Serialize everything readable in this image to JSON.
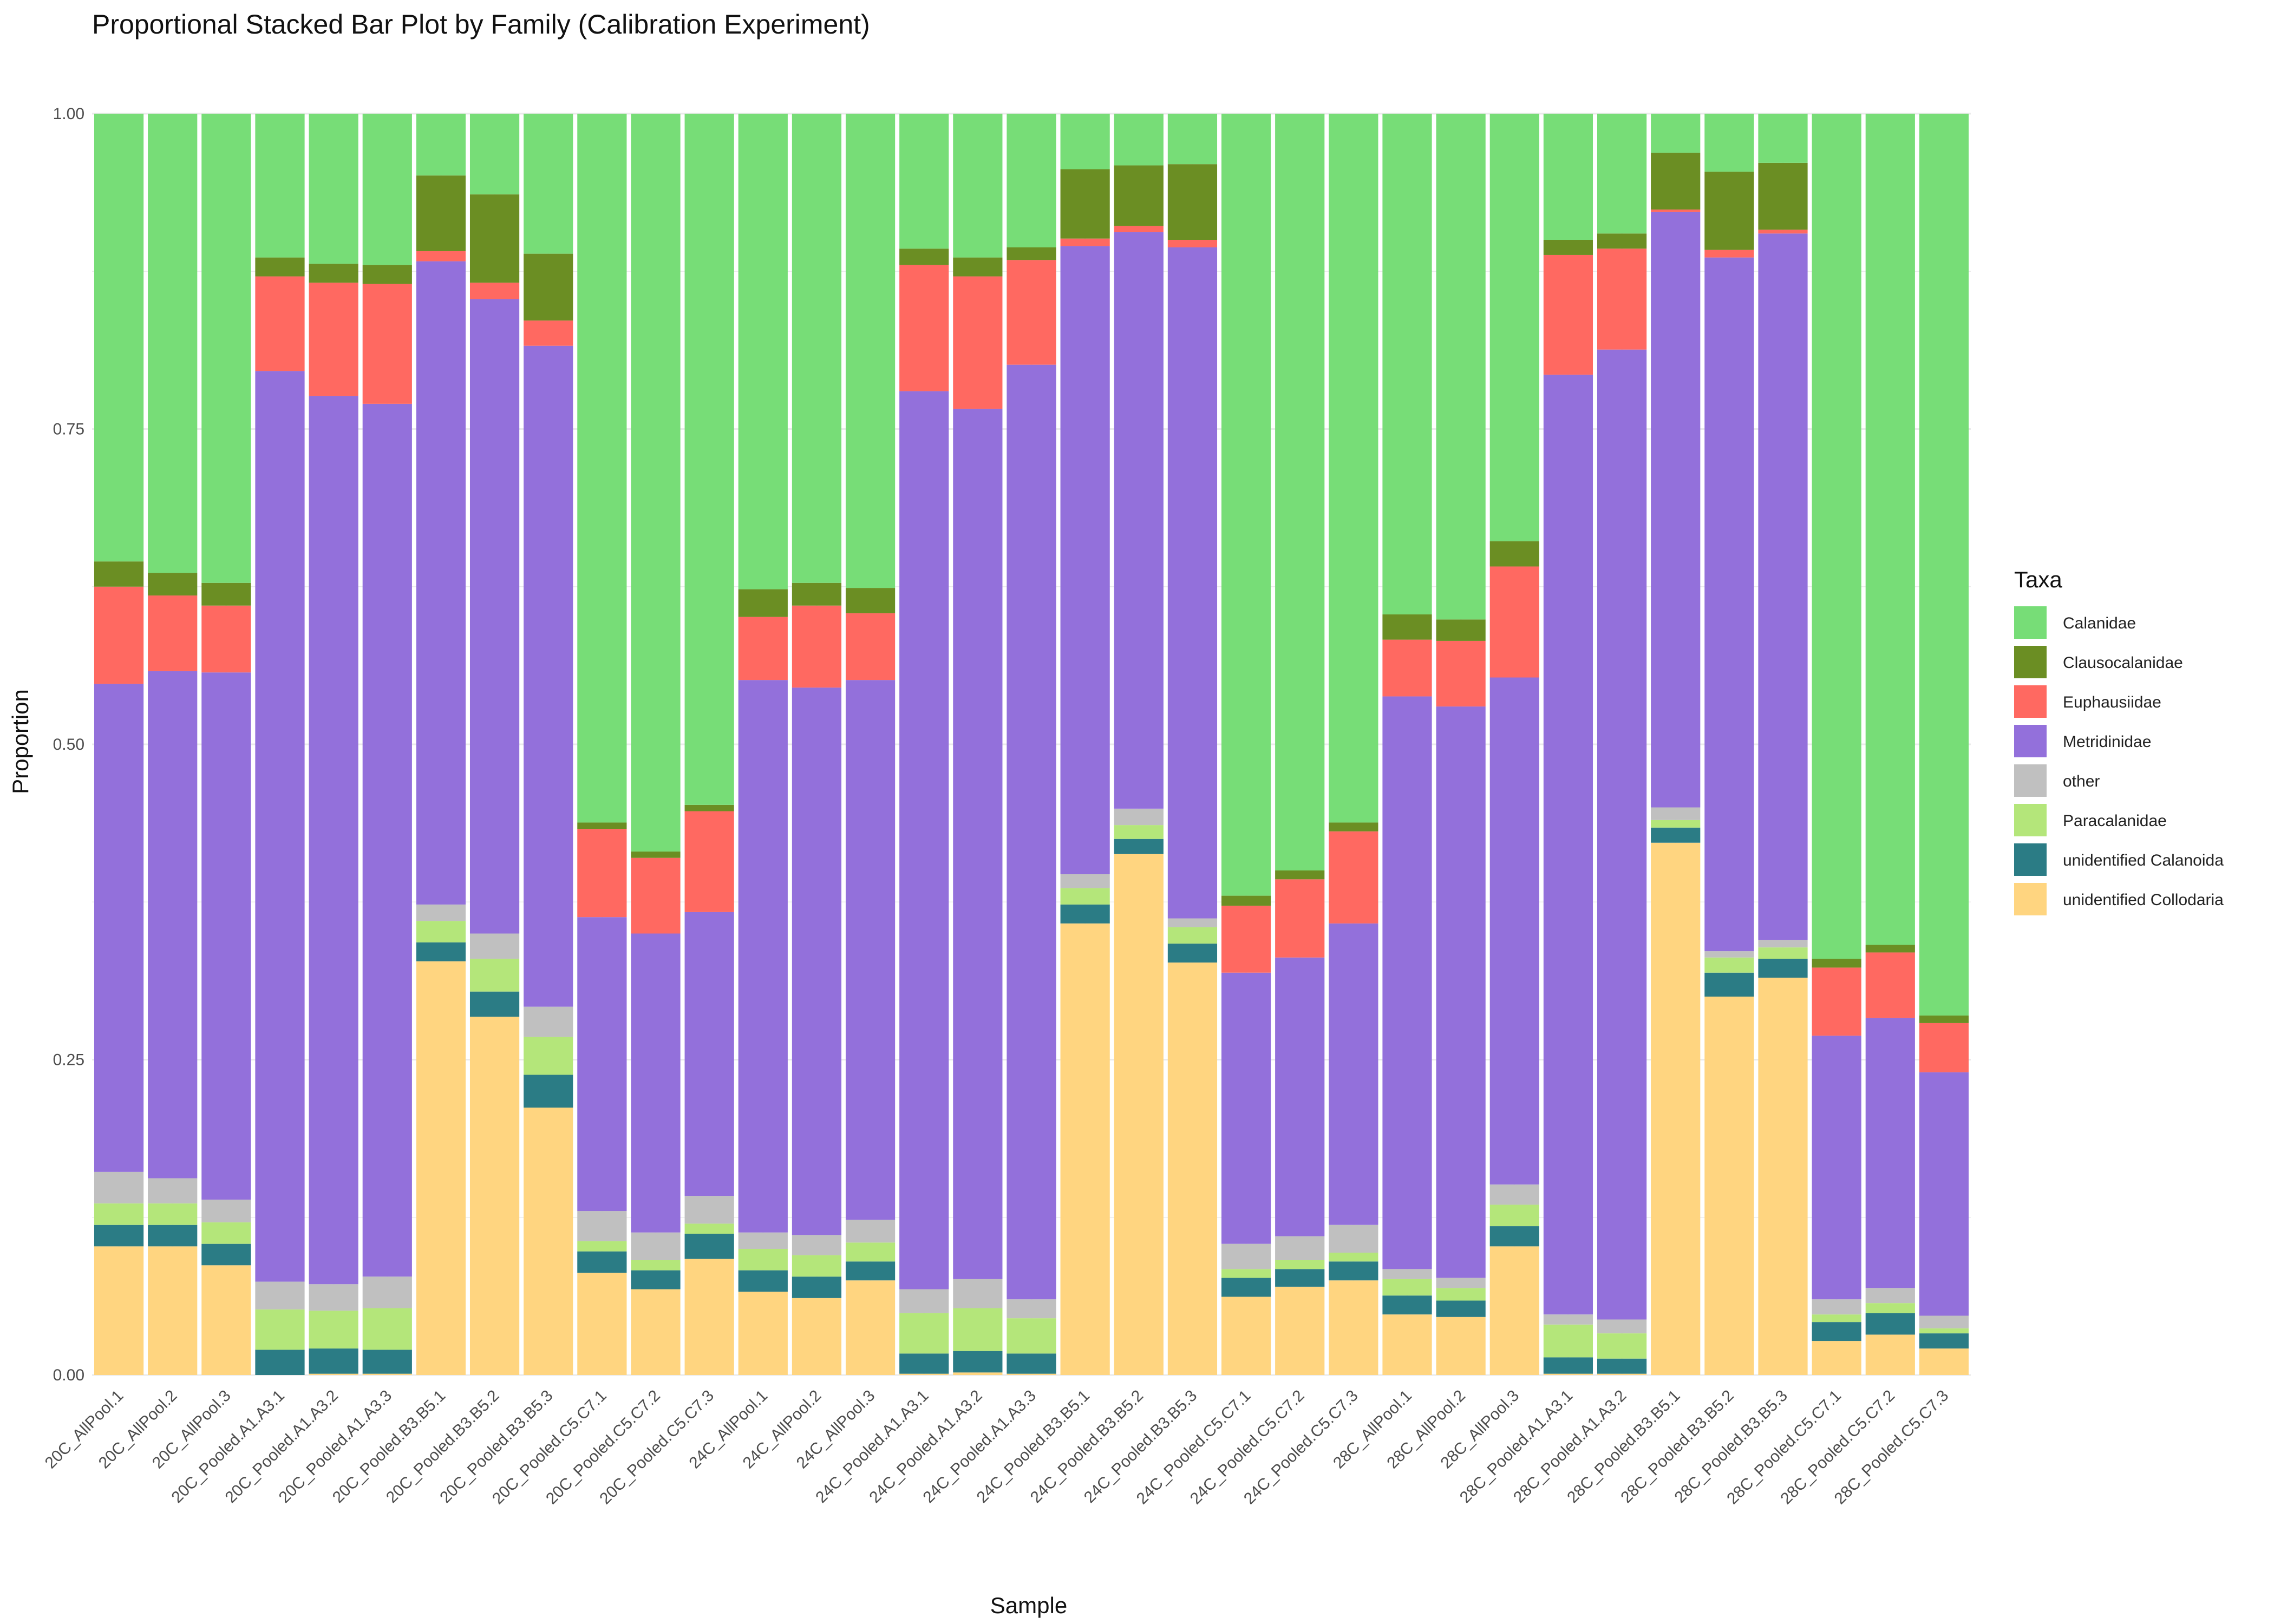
{
  "chart_data": {
    "type": "bar",
    "stacked": true,
    "title": "Proportional Stacked Bar Plot by Family (Calibration Experiment)",
    "xlabel": "Sample",
    "ylabel": "Proportion",
    "ylim": [
      0,
      1
    ],
    "yticks": [
      "0.00",
      "0.25",
      "0.50",
      "0.75",
      "1.00"
    ],
    "grid": true,
    "legend": {
      "title": "Taxa",
      "position": "right"
    },
    "categories": [
      "20C_AllPool.1",
      "20C_AllPool.2",
      "20C_AllPool.3",
      "20C_Pooled.A1.A3.1",
      "20C_Pooled.A1.A3.2",
      "20C_Pooled.A1.A3.3",
      "20C_Pooled.B3.B5.1",
      "20C_Pooled.B3.B5.2",
      "20C_Pooled.B3.B5.3",
      "20C_Pooled.C5.C7.1",
      "20C_Pooled.C5.C7.2",
      "20C_Pooled.C5.C7.3",
      "24C_AllPool.1",
      "24C_AllPool.2",
      "24C_AllPool.3",
      "24C_Pooled.A1.A3.1",
      "24C_Pooled.A1.A3.2",
      "24C_Pooled.A1.A3.3",
      "24C_Pooled.B3.B5.1",
      "24C_Pooled.B3.B5.2",
      "24C_Pooled.B3.B5.3",
      "24C_Pooled.C5.C7.1",
      "24C_Pooled.C5.C7.2",
      "24C_Pooled.C5.C7.3",
      "28C_AllPool.1",
      "28C_AllPool.2",
      "28C_AllPool.3",
      "28C_Pooled.A1.A3.1",
      "28C_Pooled.A1.A3.2",
      "28C_Pooled.B3.B5.1",
      "28C_Pooled.B3.B5.2",
      "28C_Pooled.B3.B5.3",
      "28C_Pooled.C5.C7.1",
      "28C_Pooled.C5.C7.2",
      "28C_Pooled.C5.C7.3"
    ],
    "stack_order": "bottom-to-top",
    "series": [
      {
        "name": "unidentified Collodaria",
        "color": "#FFD580",
        "values": [
          0.102,
          0.102,
          0.087,
          0.0,
          0.001,
          0.001,
          0.328,
          0.284,
          0.212,
          0.081,
          0.068,
          0.092,
          0.066,
          0.061,
          0.075,
          0.001,
          0.002,
          0.001,
          0.358,
          0.413,
          0.327,
          0.062,
          0.07,
          0.075,
          0.048,
          0.046,
          0.102,
          0.001,
          0.001,
          0.422,
          0.3,
          0.315,
          0.027,
          0.032,
          0.021
        ]
      },
      {
        "name": "unidentified Calanoida",
        "color": "#2B7C85",
        "values": [
          0.017,
          0.017,
          0.017,
          0.02,
          0.02,
          0.019,
          0.015,
          0.02,
          0.026,
          0.017,
          0.015,
          0.02,
          0.017,
          0.017,
          0.015,
          0.016,
          0.017,
          0.016,
          0.015,
          0.012,
          0.015,
          0.015,
          0.014,
          0.015,
          0.015,
          0.013,
          0.016,
          0.013,
          0.012,
          0.012,
          0.019,
          0.015,
          0.015,
          0.017,
          0.012
        ]
      },
      {
        "name": "Paracalanidae",
        "color": "#B4E67A",
        "values": [
          0.017,
          0.017,
          0.017,
          0.032,
          0.03,
          0.033,
          0.017,
          0.026,
          0.03,
          0.008,
          0.008,
          0.008,
          0.017,
          0.017,
          0.015,
          0.032,
          0.034,
          0.028,
          0.013,
          0.011,
          0.013,
          0.007,
          0.007,
          0.007,
          0.013,
          0.01,
          0.017,
          0.026,
          0.02,
          0.006,
          0.012,
          0.009,
          0.006,
          0.008,
          0.004
        ]
      },
      {
        "name": "other",
        "color": "#C0C0C0",
        "values": [
          0.025,
          0.02,
          0.018,
          0.022,
          0.021,
          0.025,
          0.013,
          0.02,
          0.024,
          0.024,
          0.022,
          0.022,
          0.013,
          0.016,
          0.018,
          0.019,
          0.023,
          0.015,
          0.011,
          0.013,
          0.007,
          0.02,
          0.019,
          0.022,
          0.008,
          0.008,
          0.016,
          0.008,
          0.011,
          0.01,
          0.005,
          0.006,
          0.012,
          0.012,
          0.01
        ]
      },
      {
        "name": "Metridinidae",
        "color": "#9370DB",
        "values": [
          0.387,
          0.402,
          0.418,
          0.722,
          0.704,
          0.692,
          0.51,
          0.503,
          0.524,
          0.233,
          0.237,
          0.225,
          0.438,
          0.434,
          0.428,
          0.712,
          0.69,
          0.741,
          0.498,
          0.457,
          0.532,
          0.215,
          0.221,
          0.239,
          0.454,
          0.453,
          0.402,
          0.745,
          0.769,
          0.472,
          0.55,
          0.56,
          0.209,
          0.214,
          0.193
        ]
      },
      {
        "name": "Euphausiidae",
        "color": "#FF6961",
        "values": [
          0.077,
          0.06,
          0.053,
          0.075,
          0.09,
          0.095,
          0.008,
          0.013,
          0.02,
          0.07,
          0.06,
          0.08,
          0.05,
          0.065,
          0.053,
          0.1,
          0.105,
          0.083,
          0.006,
          0.005,
          0.006,
          0.053,
          0.062,
          0.073,
          0.045,
          0.052,
          0.088,
          0.095,
          0.08,
          0.002,
          0.006,
          0.003,
          0.054,
          0.052,
          0.039
        ]
      },
      {
        "name": "Clausocalanidae",
        "color": "#6B8E23",
        "values": [
          0.02,
          0.018,
          0.018,
          0.015,
          0.015,
          0.015,
          0.06,
          0.07,
          0.053,
          0.005,
          0.005,
          0.005,
          0.022,
          0.018,
          0.02,
          0.013,
          0.015,
          0.01,
          0.055,
          0.048,
          0.06,
          0.008,
          0.007,
          0.007,
          0.02,
          0.017,
          0.02,
          0.012,
          0.012,
          0.045,
          0.062,
          0.053,
          0.007,
          0.006,
          0.006
        ]
      },
      {
        "name": "Calanidae",
        "color": "#77DD77",
        "values": [
          0.355,
          0.364,
          0.372,
          0.114,
          0.119,
          0.12,
          0.049,
          0.064,
          0.111,
          0.562,
          0.585,
          0.548,
          0.377,
          0.372,
          0.376,
          0.107,
          0.114,
          0.106,
          0.044,
          0.041,
          0.04,
          0.62,
          0.6,
          0.562,
          0.397,
          0.401,
          0.339,
          0.1,
          0.095,
          0.031,
          0.046,
          0.039,
          0.67,
          0.659,
          0.715
        ]
      }
    ]
  }
}
